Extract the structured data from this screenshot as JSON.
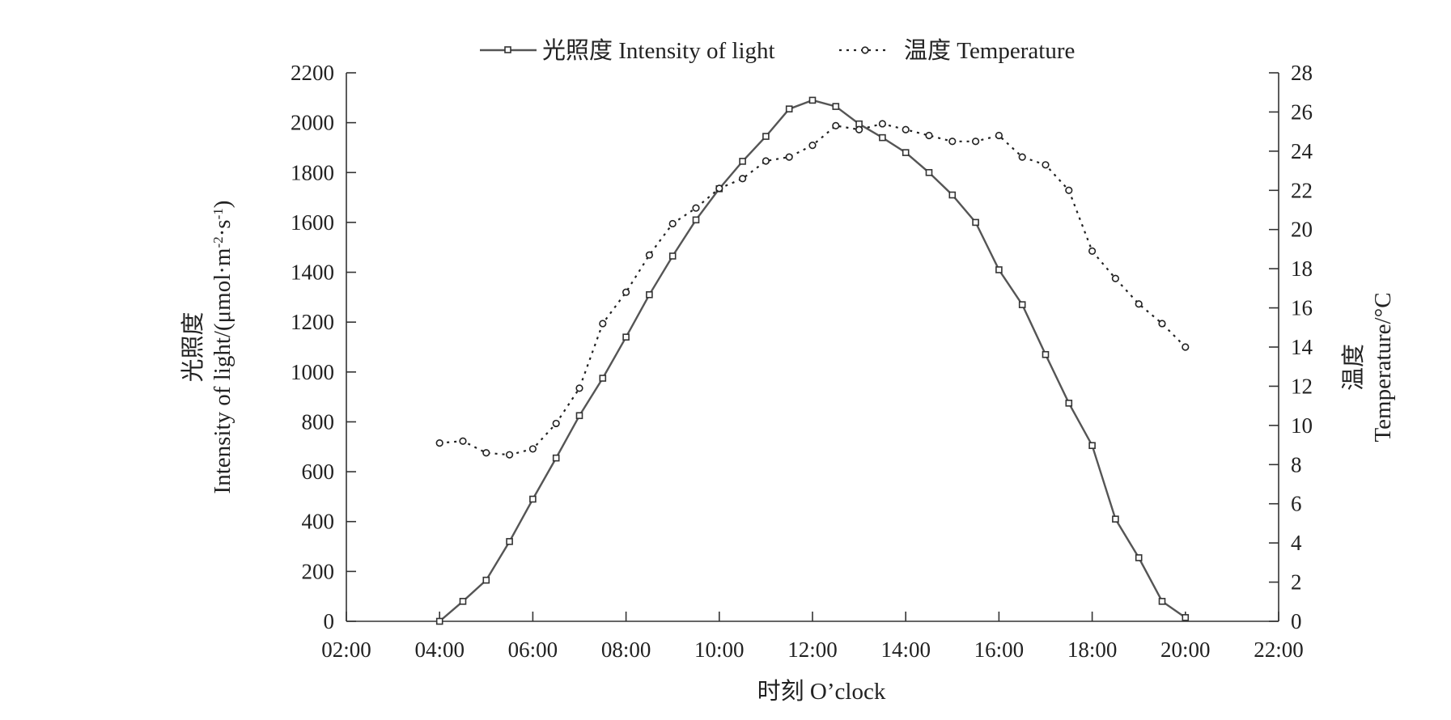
{
  "chart_data": {
    "type": "line",
    "legend": {
      "position": "top-center"
    },
    "legend_series": [
      "光照度 Intensity of light",
      "温度 Temperature"
    ],
    "xlabel": "时刻 O’clock",
    "ylabel_left": {
      "line1": "光照度",
      "line2": "Intensity of light/(μmol·m",
      "sup1": "-2",
      "mid": "·s",
      "sup2": "-1",
      "end": ")"
    },
    "ylabel_right": {
      "line1": "温度",
      "line2": "Temperature/°C"
    },
    "x_ticks": [
      "02:00",
      "04:00",
      "06:00",
      "08:00",
      "10:00",
      "12:00",
      "14:00",
      "16:00",
      "18:00",
      "20:00",
      "22:00"
    ],
    "xlim": [
      2,
      22
    ],
    "ylim_left": [
      0,
      2200
    ],
    "ylim_right": [
      0,
      28
    ],
    "y_left_ticks": [
      "0",
      "200",
      "400",
      "600",
      "800",
      "1000",
      "1200",
      "1400",
      "1600",
      "1800",
      "2000",
      "2200"
    ],
    "y_right_ticks": [
      "0",
      "2",
      "4",
      "6",
      "8",
      "10",
      "12",
      "14",
      "16",
      "18",
      "20",
      "22",
      "24",
      "26",
      "28"
    ],
    "grid": false,
    "x": [
      4,
      4.5,
      5,
      5.5,
      6,
      6.5,
      7,
      7.5,
      8,
      8.5,
      9,
      9.5,
      10,
      10.5,
      11,
      11.5,
      12,
      12.5,
      13,
      13.5,
      14,
      14.5,
      15,
      15.5,
      16,
      16.5,
      17,
      17.5,
      18,
      18.5,
      19,
      19.5,
      20
    ],
    "series": [
      {
        "name": "光照度 Intensity of light",
        "axis": "left",
        "marker": "square",
        "style": "solid",
        "color": "#555555",
        "values": [
          0,
          80,
          165,
          320,
          490,
          655,
          825,
          975,
          1140,
          1310,
          1465,
          1610,
          1735,
          1845,
          1945,
          2055,
          2090,
          2065,
          1995,
          1940,
          1880,
          1800,
          1710,
          1600,
          1410,
          1270,
          1070,
          875,
          705,
          410,
          255,
          80,
          15
        ]
      },
      {
        "name": "温度 Temperature",
        "axis": "right",
        "marker": "circle",
        "style": "dotted",
        "color": "#222222",
        "values": [
          9.1,
          9.2,
          8.6,
          8.5,
          8.8,
          10.1,
          11.9,
          15.2,
          16.8,
          18.7,
          20.3,
          21.1,
          22.1,
          22.6,
          23.5,
          23.7,
          24.3,
          25.3,
          25.1,
          25.4,
          25.1,
          24.8,
          24.5,
          24.5,
          24.8,
          23.7,
          23.3,
          22.0,
          18.9,
          17.5,
          16.2,
          15.2,
          14.0
        ]
      }
    ]
  }
}
